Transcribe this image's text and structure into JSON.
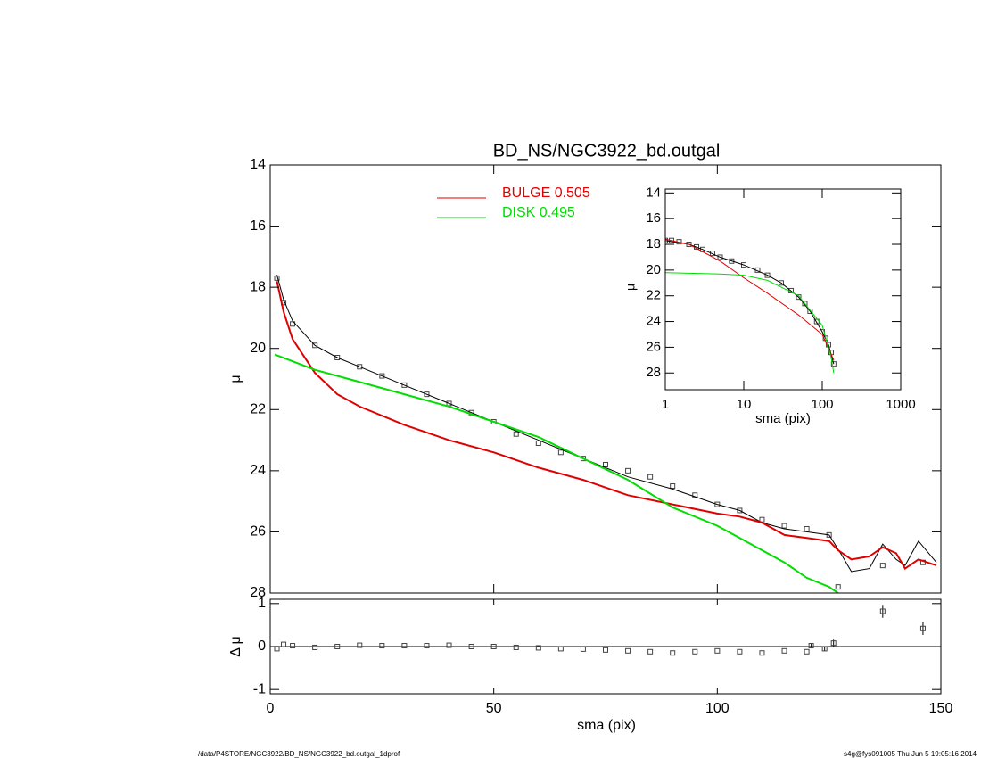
{
  "chart_data": [
    {
      "type": "line",
      "title": "BD_NS/NGC3922_bd.outgal",
      "ylabel": "μ",
      "xlim": [
        0,
        150
      ],
      "xticks": [
        0,
        50,
        100,
        150
      ],
      "ylim": [
        28,
        14
      ],
      "yticks": [
        14,
        16,
        18,
        20,
        22,
        24,
        26,
        28
      ],
      "series": [
        {
          "style": "markers",
          "color": "#444444",
          "x": [
            1.5,
            3,
            5,
            10,
            15,
            20,
            25,
            30,
            35,
            40,
            45,
            50,
            55,
            60,
            65,
            70,
            75,
            80,
            85,
            90,
            95,
            100,
            105,
            110,
            115,
            120,
            125,
            127,
            137,
            146
          ],
          "values": [
            17.7,
            18.5,
            19.2,
            19.9,
            20.3,
            20.6,
            20.9,
            21.2,
            21.5,
            21.8,
            22.1,
            22.4,
            22.8,
            23.1,
            23.4,
            23.6,
            23.8,
            24.0,
            24.2,
            24.5,
            24.8,
            25.1,
            25.3,
            25.6,
            25.8,
            25.9,
            26.1,
            27.8,
            27.1,
            27.0
          ]
        },
        {
          "style": "line",
          "color": "#000000",
          "x": [
            1.5,
            3,
            5,
            10,
            15,
            20,
            30,
            40,
            50,
            60,
            70,
            80,
            90,
            100,
            105,
            110,
            115,
            120,
            125,
            128,
            130,
            134,
            137,
            140,
            142,
            145,
            149
          ],
          "values": [
            17.6,
            18.4,
            19.1,
            19.9,
            20.3,
            20.6,
            21.2,
            21.8,
            22.4,
            23.0,
            23.6,
            24.2,
            24.6,
            25.1,
            25.3,
            25.7,
            25.9,
            26.0,
            26.1,
            26.8,
            27.3,
            27.2,
            26.4,
            26.9,
            27.1,
            26.3,
            27.0
          ]
        },
        {
          "style": "line",
          "name": "BULGE  0.505",
          "color": "#e00000",
          "x": [
            1.5,
            3,
            5,
            10,
            15,
            20,
            30,
            40,
            50,
            60,
            70,
            80,
            90,
            100,
            105,
            110,
            115,
            120,
            125,
            127,
            130,
            134,
            137,
            140,
            142,
            145,
            149
          ],
          "values": [
            17.8,
            18.8,
            19.7,
            20.8,
            21.5,
            21.9,
            22.5,
            23.0,
            23.4,
            23.9,
            24.3,
            24.8,
            25.1,
            25.4,
            25.5,
            25.7,
            26.1,
            26.2,
            26.3,
            26.6,
            26.9,
            26.8,
            26.5,
            26.7,
            27.2,
            26.9,
            27.1
          ]
        },
        {
          "style": "line",
          "name": "DISK  0.495",
          "color": "#00dd00",
          "x": [
            1,
            10,
            20,
            30,
            40,
            50,
            60,
            70,
            80,
            90,
            100,
            105,
            110,
            115,
            120,
            125,
            127
          ],
          "values": [
            20.2,
            20.7,
            21.1,
            21.5,
            21.9,
            22.4,
            22.9,
            23.6,
            24.3,
            25.2,
            25.8,
            26.2,
            26.6,
            27.0,
            27.5,
            27.8,
            28.0
          ]
        }
      ]
    },
    {
      "type": "residual",
      "xlabel": "sma (pix)",
      "ylabel": "Δ μ",
      "xlim": [
        0,
        150
      ],
      "xticks": [
        0,
        50,
        100,
        150
      ],
      "ylim": [
        -1.1,
        1.1
      ],
      "yticks": [
        -1,
        0,
        1
      ],
      "hline": 0,
      "series": [
        {
          "color": "#444444",
          "x": [
            1.5,
            3,
            5,
            10,
            15,
            20,
            25,
            30,
            35,
            40,
            45,
            50,
            55,
            60,
            65,
            70,
            75,
            80,
            85,
            90,
            95,
            100,
            105,
            110,
            115,
            120,
            121,
            124,
            126,
            137,
            146
          ],
          "values": [
            -0.05,
            0.05,
            0.02,
            -0.02,
            0.0,
            0.03,
            0.02,
            0.02,
            0.02,
            0.03,
            0.0,
            0.0,
            -0.02,
            -0.03,
            -0.05,
            -0.06,
            -0.08,
            -0.1,
            -0.12,
            -0.15,
            -0.12,
            -0.1,
            -0.12,
            -0.15,
            -0.1,
            -0.12,
            0.02,
            -0.05,
            0.08,
            0.82,
            0.42
          ],
          "errors": [
            0,
            0,
            0,
            0,
            0,
            0,
            0,
            0,
            0,
            0,
            0,
            0,
            0,
            0,
            0,
            0,
            0,
            0,
            0,
            0,
            0,
            0,
            0,
            0,
            0,
            0,
            0.05,
            0.05,
            0.08,
            0.15,
            0.15
          ]
        }
      ]
    },
    {
      "type": "line",
      "xlabel": "sma (pix)",
      "ylabel": "μ",
      "log_x": true,
      "xlim": [
        1,
        1000
      ],
      "xticks": [
        1,
        10,
        100,
        1000
      ],
      "ylim": [
        29.3,
        13.7
      ],
      "yticks": [
        14,
        16,
        18,
        20,
        22,
        24,
        26,
        28
      ],
      "series": [
        {
          "style": "markers",
          "color": "#444444",
          "x": [
            1,
            1.2,
            1.5,
            2,
            2.5,
            3,
            4,
            5,
            7,
            10,
            15,
            20,
            30,
            40,
            50,
            60,
            70,
            85,
            100,
            110,
            120,
            130,
            140
          ],
          "values": [
            17.7,
            17.7,
            17.8,
            18.0,
            18.2,
            18.4,
            18.7,
            19.0,
            19.3,
            19.6,
            20.0,
            20.4,
            21.0,
            21.6,
            22.1,
            22.6,
            23.2,
            24.0,
            24.8,
            25.3,
            25.8,
            26.4,
            27.3
          ]
        },
        {
          "style": "line",
          "color": "#000000",
          "x": [
            1,
            2,
            3,
            5,
            10,
            20,
            30,
            50,
            70,
            100,
            120,
            140
          ],
          "values": [
            17.7,
            18.0,
            18.4,
            19.0,
            19.6,
            20.4,
            21.0,
            22.1,
            23.2,
            24.8,
            25.8,
            27.3
          ]
        },
        {
          "style": "line",
          "color": "#e00000",
          "x": [
            1,
            2,
            5,
            10,
            20,
            50,
            100,
            140
          ],
          "values": [
            17.6,
            18.0,
            19.3,
            20.6,
            21.8,
            23.5,
            25.0,
            27.0
          ]
        },
        {
          "style": "line",
          "color": "#00dd00",
          "x": [
            1,
            5,
            10,
            20,
            50,
            100,
            130,
            140
          ],
          "values": [
            20.2,
            20.3,
            20.4,
            20.8,
            22.0,
            24.3,
            26.8,
            28.0
          ]
        }
      ]
    }
  ],
  "footer": {
    "left": "/data/P4STORE/NGC3922/BD_NS/NGC3922_bd.outgal_1dprof",
    "right": "s4g@fys091005  Thu Jun  5 19:05:16 2014"
  }
}
